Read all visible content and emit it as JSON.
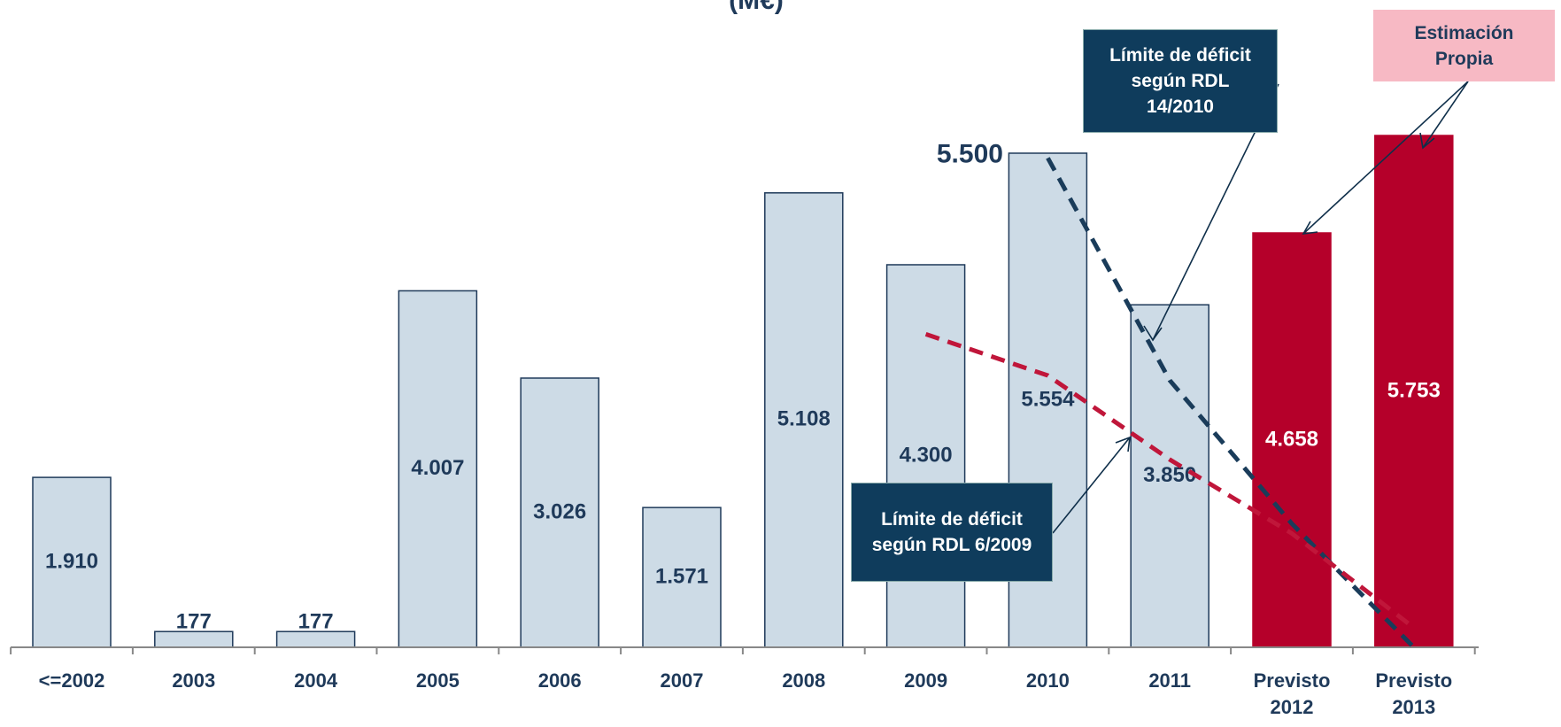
{
  "chart_data": {
    "type": "bar",
    "title": "(M€)",
    "categories": [
      "<=2002",
      "2003",
      "2004",
      "2005",
      "2006",
      "2007",
      "2008",
      "2009",
      "2010",
      "2011",
      "Previsto 2012",
      "Previsto 2013"
    ],
    "values": [
      1910,
      177,
      177,
      4007,
      3026,
      1571,
      5108,
      4300,
      5554,
      3850,
      4658,
      5753
    ],
    "value_labels": [
      "1.910",
      "177",
      "177",
      "4.007",
      "3.026",
      "1.571",
      "5.108",
      "4.300",
      "5.554",
      "3.850",
      "4.658",
      "5.753"
    ],
    "colors": [
      "#cddbe6",
      "#cddbe6",
      "#cddbe6",
      "#cddbe6",
      "#cddbe6",
      "#cddbe6",
      "#cddbe6",
      "#cddbe6",
      "#cddbe6",
      "#cddbe6",
      "#b5002a",
      "#b5002a"
    ],
    "label_colors": [
      "#1f3a5a",
      "#1f3a5a",
      "#1f3a5a",
      "#1f3a5a",
      "#1f3a5a",
      "#1f3a5a",
      "#1f3a5a",
      "#1f3a5a",
      "#1f3a5a",
      "#1f3a5a",
      "#ffffff",
      "#ffffff"
    ],
    "lines": [
      {
        "name": "Límite de déficit según RDL 14/2010",
        "color": "#1a3c5a",
        "values": [
          null,
          null,
          null,
          null,
          null,
          null,
          null,
          null,
          5500,
          3000,
          1390,
          0
        ],
        "value_labels": [
          null,
          null,
          null,
          null,
          null,
          null,
          null,
          null,
          "5.500",
          null,
          null,
          null
        ]
      },
      {
        "name": "Límite de déficit según RDL 6/2009",
        "color": "#c0163a",
        "values": [
          null,
          null,
          null,
          null,
          null,
          null,
          null,
          3520,
          3055,
          2110,
          1280,
          220
        ]
      }
    ],
    "annotation": "Estimación Propia"
  }
}
